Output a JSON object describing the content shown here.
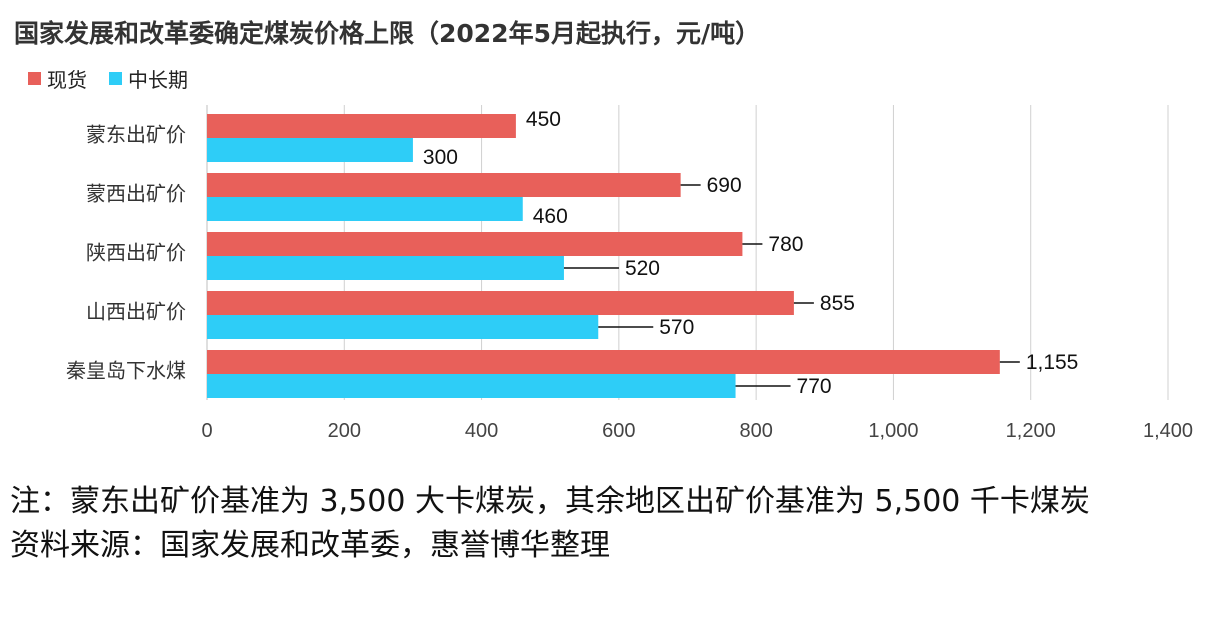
{
  "title": "国家发展和改革委确定煤炭价格上限（2022年5月起执行，元/吨）",
  "legend": [
    {
      "name": "现货",
      "color": "#e8605a"
    },
    {
      "name": "中长期",
      "color": "#2ecdf7"
    }
  ],
  "chart_data": {
    "type": "bar",
    "orientation": "horizontal",
    "categories": [
      "蒙东出矿价",
      "蒙西出矿价",
      "陕西出矿价",
      "山西出矿价",
      "秦皇岛下水煤"
    ],
    "series": [
      {
        "name": "现货",
        "color": "#e8605a",
        "values": [
          450,
          690,
          780,
          855,
          1155
        ],
        "labels": [
          "450",
          "690",
          "780",
          "855",
          "1,155"
        ]
      },
      {
        "name": "中长期",
        "color": "#2ecdf7",
        "values": [
          300,
          460,
          520,
          570,
          770
        ],
        "labels": [
          "300",
          "460",
          "520",
          "570",
          "770"
        ]
      }
    ],
    "xlim": [
      0,
      1400
    ],
    "ticks": [
      0,
      200,
      400,
      600,
      800,
      1000,
      1200,
      1400
    ],
    "tick_labels": [
      "0",
      "200",
      "400",
      "600",
      "800",
      "1,000",
      "1,200",
      "1,400"
    ],
    "grid": "vertical",
    "legend_position": "top-left"
  },
  "notes": {
    "line1": "注：蒙东出矿价基准为 3,500 大卡煤炭，其余地区出矿价基准为 5,500 千卡煤炭",
    "line2": "资料来源：国家发展和改革委，惠誉博华整理"
  }
}
